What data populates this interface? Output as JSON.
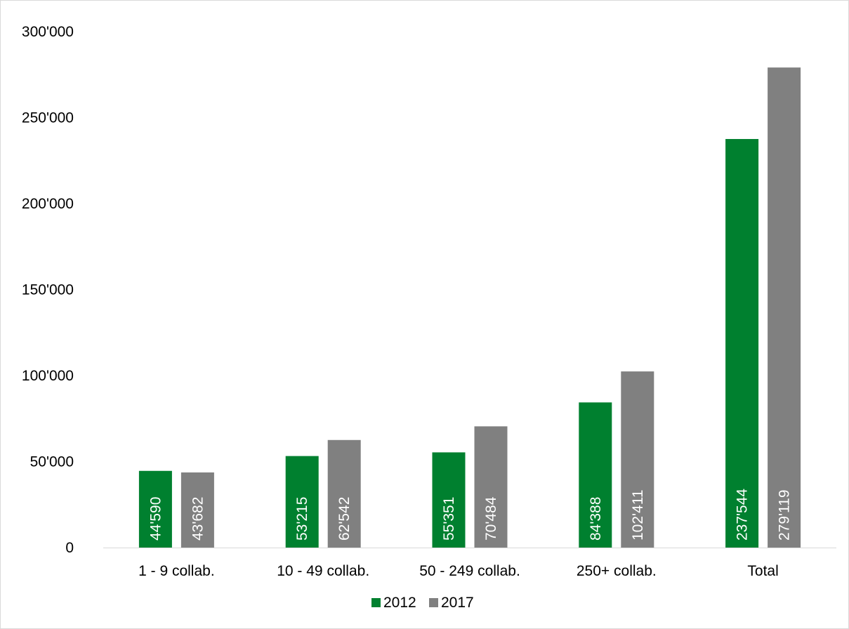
{
  "chart_data": {
    "type": "bar",
    "categories": [
      "1 - 9 collab.",
      "10 - 49 collab.",
      "50 - 249 collab.",
      "250+ collab.",
      "Total"
    ],
    "series": [
      {
        "name": "2012",
        "color": "#00802f",
        "values": [
          44590,
          53215,
          55351,
          84388,
          237544
        ],
        "labels": [
          "44'590",
          "53'215",
          "55'351",
          "84'388",
          "237'544"
        ]
      },
      {
        "name": "2017",
        "color": "#808080",
        "values": [
          43682,
          62542,
          70484,
          102411,
          279119
        ],
        "labels": [
          "43'682",
          "62'542",
          "70'484",
          "102'411",
          "279'119"
        ]
      }
    ],
    "ylim": [
      0,
      300000
    ],
    "yticks": [
      0,
      50000,
      100000,
      150000,
      200000,
      250000,
      300000
    ],
    "ytick_labels": [
      "0",
      "50'000",
      "100'000",
      "150'000",
      "200'000",
      "250'000",
      "300'000"
    ],
    "title": "",
    "xlabel": "",
    "ylabel": "",
    "grid": false,
    "legend_position": "bottom"
  }
}
